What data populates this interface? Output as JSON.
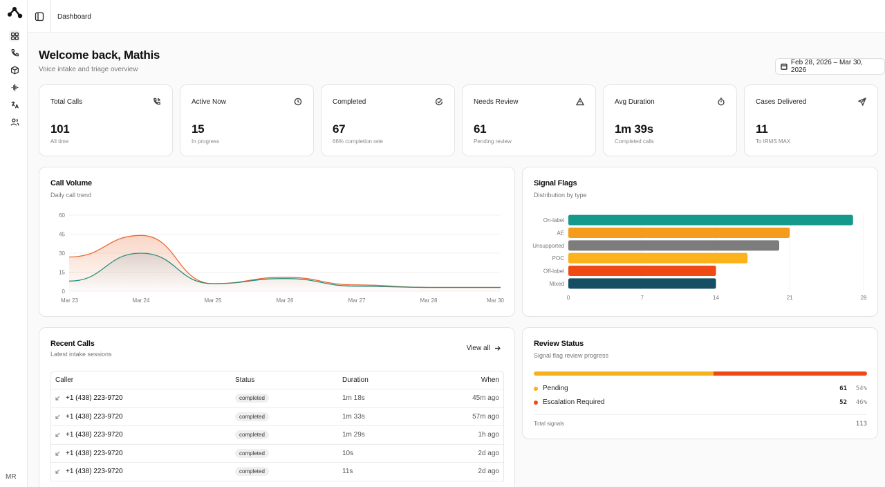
{
  "sidebar": {
    "items": [
      {
        "name": "dashboard",
        "icon": "grid-icon"
      },
      {
        "name": "calls",
        "icon": "phone-icon"
      },
      {
        "name": "cases",
        "icon": "box-icon"
      },
      {
        "name": "voice",
        "icon": "waveform-icon"
      },
      {
        "name": "translate",
        "icon": "translate-icon"
      },
      {
        "name": "users",
        "icon": "users-icon"
      }
    ],
    "user_initials": "MR"
  },
  "topbar": {
    "breadcrumb": "Dashboard"
  },
  "header": {
    "title": "Welcome back, Mathis",
    "subtitle": "Voice intake and triage overview",
    "date_range": "Feb 28, 2026 – Mar 30, 2026"
  },
  "stats": [
    {
      "label": "Total Calls",
      "value": "101",
      "sub": "All time",
      "icon": "phone-call-icon"
    },
    {
      "label": "Active Now",
      "value": "15",
      "sub": "In progress",
      "icon": "clock-icon"
    },
    {
      "label": "Completed",
      "value": "67",
      "sub": "66% completion rate",
      "icon": "check-circle-icon"
    },
    {
      "label": "Needs Review",
      "value": "61",
      "sub": "Pending review",
      "icon": "alert-triangle-icon"
    },
    {
      "label": "Avg Duration",
      "value": "1m 39s",
      "sub": "Completed calls",
      "icon": "timer-icon"
    },
    {
      "label": "Cases Delivered",
      "value": "11",
      "sub": "To IRMS MAX",
      "icon": "send-icon"
    }
  ],
  "call_volume": {
    "title": "Call Volume",
    "subtitle": "Daily call trend"
  },
  "signal_flags": {
    "title": "Signal Flags",
    "subtitle": "Distribution by type"
  },
  "chart_data": [
    {
      "type": "area",
      "title": "Call Volume",
      "subtitle": "Daily call trend",
      "x": [
        "Mar 23",
        "Mar 24",
        "Mar 25",
        "Mar 26",
        "Mar 27",
        "Mar 28",
        "Mar 30"
      ],
      "ylim": [
        0,
        60
      ],
      "yticks": [
        0,
        15,
        30,
        45,
        60
      ],
      "grid": true,
      "series": [
        {
          "values": [
            27,
            44,
            6,
            11,
            5,
            3,
            3
          ],
          "color": "#ea6a33"
        },
        {
          "values": [
            8,
            30,
            6,
            10,
            4,
            3,
            3
          ],
          "color": "#2f8f7d"
        }
      ]
    },
    {
      "type": "bar",
      "orientation": "horizontal",
      "title": "Signal Flags",
      "subtitle": "Distribution by type",
      "categories": [
        "On-label",
        "AE",
        "Unsupported",
        "POC",
        "Off-label",
        "Mixed"
      ],
      "values": [
        27,
        21,
        20,
        17,
        14,
        14
      ],
      "colors": [
        "#14998a",
        "#f59c1c",
        "#7c7c7c",
        "#fbb21b",
        "#ef4a13",
        "#164e63"
      ],
      "xlim": [
        0,
        28
      ],
      "xticks": [
        0,
        7,
        14,
        21,
        28
      ],
      "grid": true
    }
  ],
  "recent_calls": {
    "title": "Recent Calls",
    "subtitle": "Latest intake sessions",
    "view_all": "View all",
    "columns": [
      "Caller",
      "Status",
      "Duration",
      "When"
    ],
    "rows": [
      {
        "caller": "+1 (438) 223-9720",
        "status": "completed",
        "duration": "1m 18s",
        "when": "45m ago"
      },
      {
        "caller": "+1 (438) 223-9720",
        "status": "completed",
        "duration": "1m 33s",
        "when": "57m ago"
      },
      {
        "caller": "+1 (438) 223-9720",
        "status": "completed",
        "duration": "1m 29s",
        "when": "1h ago"
      },
      {
        "caller": "+1 (438) 223-9720",
        "status": "completed",
        "duration": "10s",
        "when": "2d ago"
      },
      {
        "caller": "+1 (438) 223-9720",
        "status": "completed",
        "duration": "11s",
        "when": "2d ago"
      }
    ]
  },
  "review_status": {
    "title": "Review Status",
    "subtitle": "Signal flag review progress",
    "items": [
      {
        "label": "Pending",
        "count": "61",
        "pct": "54%",
        "fraction": 0.54,
        "color": "#f5b21b"
      },
      {
        "label": "Escalation Required",
        "count": "52",
        "pct": "46%",
        "fraction": 0.46,
        "color": "#ef4a13"
      }
    ],
    "total_label": "Total signals",
    "total_value": "113"
  }
}
